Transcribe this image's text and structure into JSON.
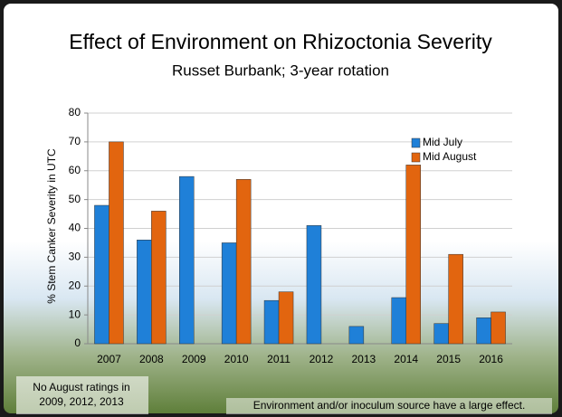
{
  "chart_data": {
    "type": "bar",
    "title": "Effect of Environment on Rhizoctonia Severity",
    "subtitle": "Russet Burbank; 3-year rotation",
    "y_label": "% Stem Canker Severity in UTC",
    "categories": [
      "2007",
      "2008",
      "2009",
      "2010",
      "2011",
      "2012",
      "2013",
      "2014",
      "2015",
      "2016"
    ],
    "series": [
      {
        "name": "Mid July",
        "color": "#1f80d8",
        "values": [
          48,
          36,
          58,
          35,
          15,
          41,
          6,
          16,
          7,
          9
        ]
      },
      {
        "name": "Mid August",
        "color": "#e2650f",
        "values": [
          70,
          46,
          null,
          57,
          18,
          null,
          null,
          62,
          31,
          11
        ]
      }
    ],
    "ylim": [
      0,
      80
    ],
    "yticks": [
      0,
      10,
      20,
      30,
      40,
      50,
      60,
      70,
      80
    ],
    "grid": true,
    "legend": "top-right",
    "annotations": [
      {
        "lines": [
          "No August ratings in",
          "2009, 2012, 2013"
        ]
      },
      {
        "lines": [
          "Environment and/or inoculum source have a large effect."
        ]
      }
    ]
  }
}
